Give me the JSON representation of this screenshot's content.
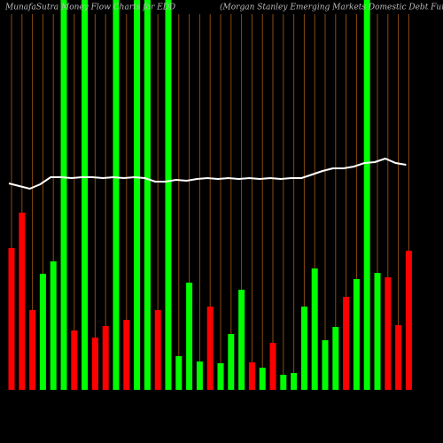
{
  "chart_data": {
    "type": "bar",
    "title": "MunafaSutra Money Flow Charts for EDD",
    "subtitle": "(Morgan Stanley Emerging Markets Domestic Debt Fund, Inc.) Munafa",
    "values": [
      160,
      200,
      90,
      131,
      145,
      440,
      67,
      440,
      59,
      72,
      440,
      79,
      440,
      440,
      90,
      440,
      38,
      121,
      32,
      94,
      30,
      63,
      113,
      31,
      25,
      53,
      17,
      19,
      94,
      137,
      56,
      71,
      105,
      125,
      440,
      132,
      127,
      73,
      157
    ],
    "colors": [
      "#ff0000",
      "#ff0000",
      "#ff0000",
      "#00ff00",
      "#00ff00",
      "#00ff00",
      "#ff0000",
      "#00ff00",
      "#ff0000",
      "#ff0000",
      "#00ff00",
      "#ff0000",
      "#00ff00",
      "#00ff00",
      "#ff0000",
      "#00ff00",
      "#00ff00",
      "#00ff00",
      "#00ff00",
      "#ff0000",
      "#00ff00",
      "#00ff00",
      "#00ff00",
      "#ff0000",
      "#00ff00",
      "#ff0000",
      "#00ff00",
      "#00ff00",
      "#00ff00",
      "#00ff00",
      "#00ff00",
      "#00ff00",
      "#ff0000",
      "#00ff00",
      "#00ff00",
      "#00ff00",
      "#ff0000",
      "#ff0000",
      "#ff0000"
    ],
    "line": {
      "color": "#ffffff",
      "values": [
        233,
        230,
        227,
        232,
        240,
        240,
        239,
        240,
        240,
        239,
        240,
        239,
        240,
        239,
        235,
        235,
        237,
        236,
        238,
        239,
        238,
        239,
        238,
        239,
        238,
        239,
        238,
        239,
        239,
        243,
        247,
        250,
        250,
        252,
        256,
        257,
        261,
        256,
        254
      ]
    },
    "ylim": [
      0,
      440
    ],
    "gridline_color": "#8b4a10"
  }
}
